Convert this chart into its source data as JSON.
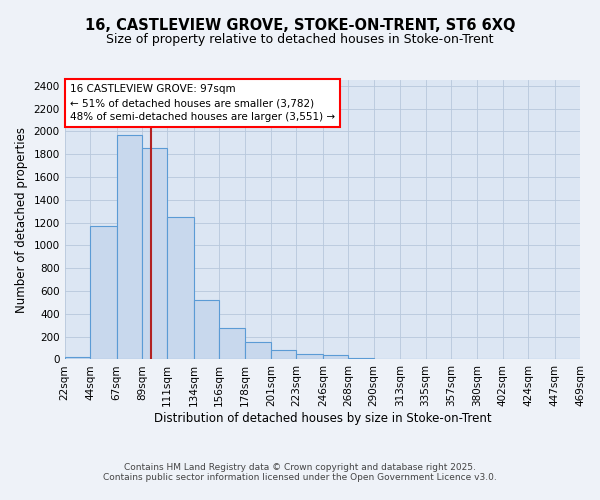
{
  "title_line1": "16, CASTLEVIEW GROVE, STOKE-ON-TRENT, ST6 6XQ",
  "title_line2": "Size of property relative to detached houses in Stoke-on-Trent",
  "xlabel": "Distribution of detached houses by size in Stoke-on-Trent",
  "ylabel": "Number of detached properties",
  "bar_edges": [
    22,
    44,
    67,
    89,
    111,
    134,
    156,
    178,
    201,
    223,
    246,
    268,
    290,
    313,
    335,
    357,
    380,
    402,
    424,
    447,
    469
  ],
  "bar_heights": [
    25,
    1170,
    1970,
    1850,
    1250,
    520,
    275,
    150,
    85,
    50,
    35,
    15,
    5,
    3,
    2,
    1,
    1,
    0,
    0,
    0
  ],
  "bar_color": "#c8d8ed",
  "bar_edge_color": "#5b9bd5",
  "red_line_x": 97,
  "ylim": [
    0,
    2450
  ],
  "yticks": [
    0,
    200,
    400,
    600,
    800,
    1000,
    1200,
    1400,
    1600,
    1800,
    2000,
    2200,
    2400
  ],
  "tick_labels": [
    "22sqm",
    "44sqm",
    "67sqm",
    "89sqm",
    "111sqm",
    "134sqm",
    "156sqm",
    "178sqm",
    "201sqm",
    "223sqm",
    "246sqm",
    "268sqm",
    "290sqm",
    "313sqm",
    "335sqm",
    "357sqm",
    "380sqm",
    "402sqm",
    "424sqm",
    "447sqm",
    "469sqm"
  ],
  "annotation_line1": "16 CASTLEVIEW GROVE: 97sqm",
  "annotation_line2": "← 51% of detached houses are smaller (3,782)",
  "annotation_line3": "48% of semi-detached houses are larger (3,551) →",
  "footer_line1": "Contains HM Land Registry data © Crown copyright and database right 2025.",
  "footer_line2": "Contains public sector information licensed under the Open Government Licence v3.0.",
  "bg_color": "#eef2f8",
  "plot_bg_color": "#dce6f3",
  "grid_color": "#b8c8dc",
  "title_fontsize": 10.5,
  "subtitle_fontsize": 9,
  "axis_label_fontsize": 8.5,
  "tick_fontsize": 7.5,
  "annotation_fontsize": 7.5,
  "footer_fontsize": 6.5
}
